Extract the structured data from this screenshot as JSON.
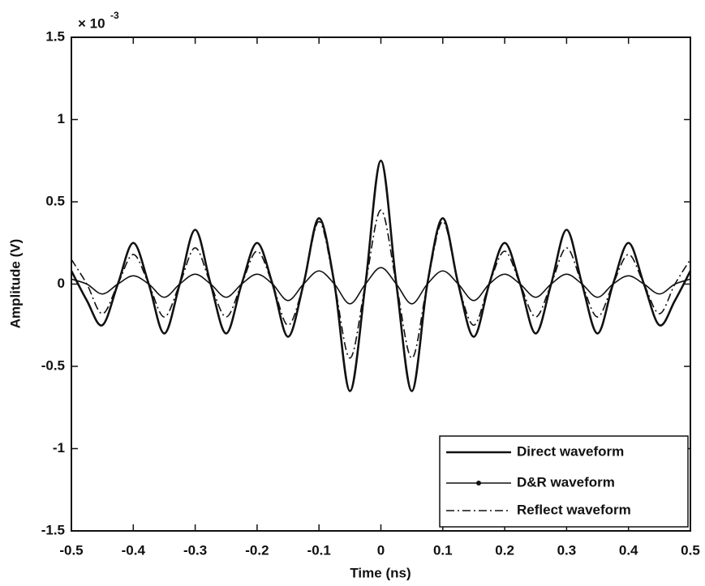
{
  "chart_data": {
    "type": "line",
    "x_label": "Time (ns)",
    "y_label": "Amplitude (V)",
    "y_multiplier": "× 10",
    "y_multiplier_exponent": "-3",
    "x": [
      -0.5,
      -0.475,
      -0.45,
      -0.425,
      -0.4,
      -0.375,
      -0.35,
      -0.325,
      -0.3,
      -0.275,
      -0.25,
      -0.225,
      -0.2,
      -0.175,
      -0.15,
      -0.125,
      -0.1,
      -0.075,
      -0.05,
      -0.025,
      0,
      0.025,
      0.05,
      0.075,
      0.1,
      0.125,
      0.15,
      0.175,
      0.2,
      0.225,
      0.25,
      0.275,
      0.3,
      0.325,
      0.35,
      0.375,
      0.4,
      0.425,
      0.45,
      0.475,
      0.5
    ],
    "series": [
      {
        "name": "Direct waveform",
        "color": "#111111",
        "style": "solid",
        "values": [
          0.08,
          -0.1,
          -0.25,
          0,
          0.25,
          0,
          -0.3,
          0,
          0.33,
          0,
          -0.3,
          0,
          0.25,
          0,
          -0.32,
          0,
          0.4,
          0,
          -0.65,
          0,
          0.75,
          0,
          -0.65,
          0,
          0.4,
          0,
          -0.32,
          0,
          0.25,
          0,
          -0.3,
          0,
          0.33,
          0,
          -0.3,
          0,
          0.25,
          0,
          -0.25,
          -0.1,
          0.08
        ]
      },
      {
        "name": "D&R waveform",
        "color": "#111111",
        "style": "marker",
        "values": [
          0.03,
          0,
          -0.06,
          0,
          0.05,
          0,
          -0.08,
          0,
          0.06,
          0,
          -0.08,
          0,
          0.06,
          0,
          -0.1,
          0,
          0.08,
          0,
          -0.12,
          0,
          0.1,
          0,
          -0.12,
          0,
          0.08,
          0,
          -0.1,
          0,
          0.06,
          0,
          -0.08,
          0,
          0.06,
          0,
          -0.08,
          0,
          0.05,
          0,
          -0.06,
          0,
          0.03
        ]
      },
      {
        "name": "Reflect waveform",
        "color": "#111111",
        "style": "dashdot",
        "values": [
          0.15,
          0,
          -0.18,
          0,
          0.18,
          0,
          -0.2,
          0,
          0.22,
          0,
          -0.2,
          0,
          0.2,
          0,
          -0.25,
          0,
          0.38,
          0,
          -0.45,
          0,
          0.45,
          0,
          -0.45,
          0,
          0.38,
          0,
          -0.25,
          0,
          0.2,
          0,
          -0.2,
          0,
          0.22,
          0,
          -0.2,
          0,
          0.18,
          0,
          -0.18,
          0,
          0.15
        ]
      }
    ],
    "xlim": [
      -0.5,
      0.5
    ],
    "xticks": [
      -0.5,
      -0.4,
      -0.3,
      -0.2,
      -0.1,
      0,
      0.1,
      0.2,
      0.3,
      0.4,
      0.5
    ],
    "ylim": [
      -1.5,
      1.5
    ],
    "yticks": [
      -1.5,
      -1,
      -0.5,
      0,
      0.5,
      1,
      1.5
    ],
    "legend": "lower right"
  }
}
